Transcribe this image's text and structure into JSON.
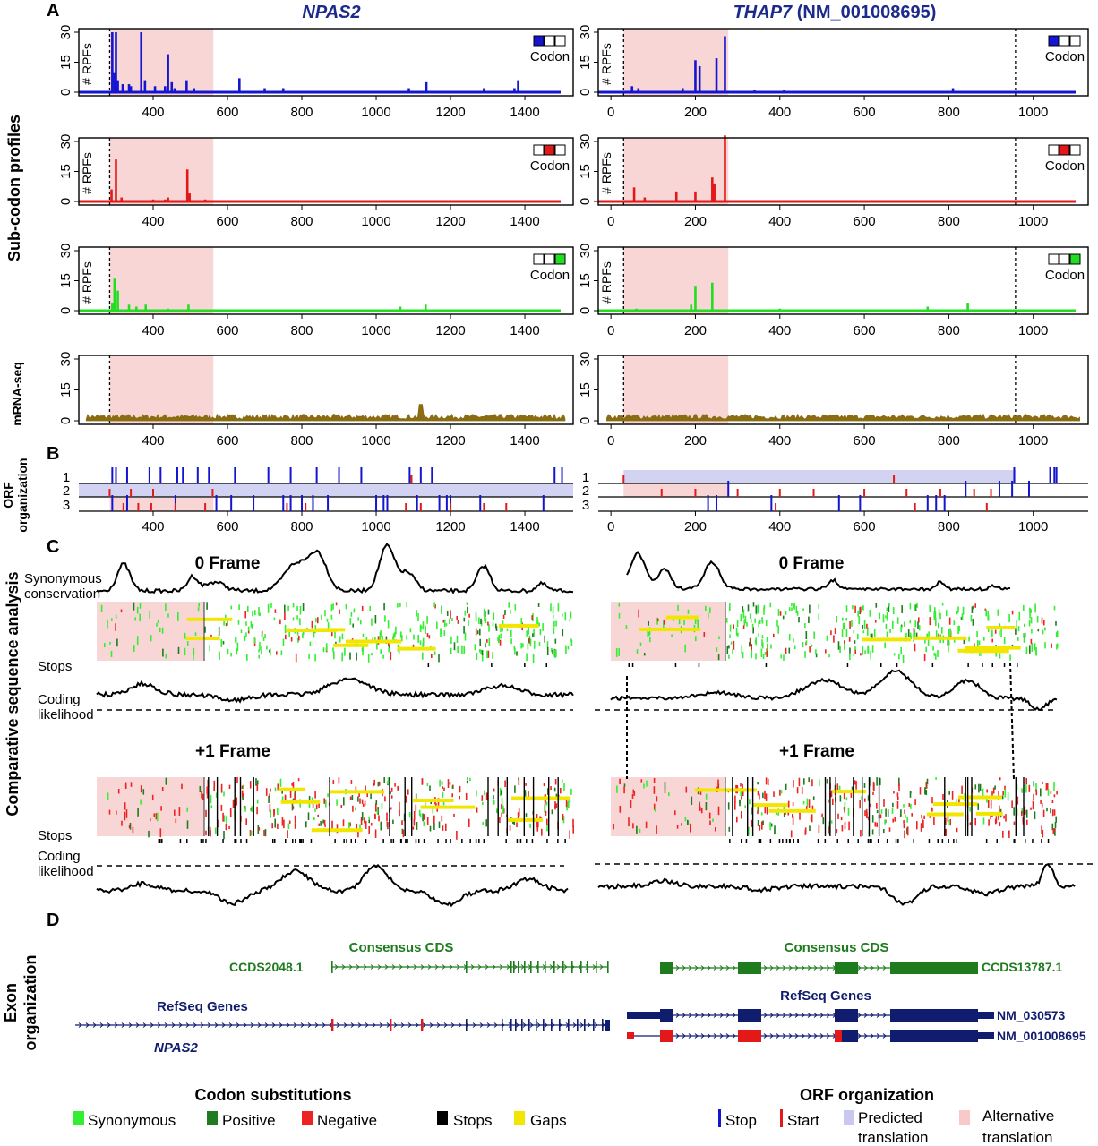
{
  "panels": {
    "A": "A",
    "B": "B",
    "C": "C",
    "D": "D"
  },
  "genes": {
    "left_title": "NPAS2",
    "right_title_italic": "THAP7",
    "right_title_suffix": " (NM_001008695)"
  },
  "section_labels": {
    "subcodon": "Sub-codon profiles",
    "mrna": "mRNA-seq",
    "orf_line1": "ORF",
    "orf_line2": "organization",
    "comparative": "Comparative sequence analysis",
    "exon_line1": "Exon",
    "exon_line2": "organization"
  },
  "profile_labels": {
    "ylabel": "# RPFs",
    "codon": "Codon"
  },
  "y_ticks": [
    "0",
    "15",
    "30"
  ],
  "orf_frames": [
    "1",
    "2",
    "3"
  ],
  "axes": {
    "left_x_ticks": [
      "400",
      "600",
      "800",
      "1000",
      "1200",
      "1400"
    ],
    "right_x_ticks": [
      "0",
      "200",
      "400",
      "600",
      "800",
      "1000"
    ]
  },
  "comparative": {
    "frame0": "0 Frame",
    "frame1": "+1 Frame",
    "synonymous_line1": "Synonymous",
    "synonymous_line2": "conservation",
    "stops": "Stops",
    "coding_line1": "Coding",
    "coding_line2": "likelihood"
  },
  "exon": {
    "consensus": "Consensus CDS",
    "refseq": "RefSeq Genes",
    "left_ccds": "CCDS2048.1",
    "left_gene": "NPAS2",
    "right_ccds": "CCDS13787.1",
    "right_nm1": "NM_030573",
    "right_nm2": "NM_001008695"
  },
  "legend": {
    "codon_title": "Codon substitutions",
    "synonymous": "Synonymous",
    "positive": "Positive",
    "negative": "Negative",
    "stops": "Stops",
    "gaps": "Gaps",
    "orf_title": "ORF organization",
    "stop": "Stop",
    "start": "Start",
    "predicted_line1": "Predicted",
    "predicted_line2": "translation",
    "alternative_line1": "Alternative",
    "alternative_line2": "translation"
  },
  "colors": {
    "frame1": "#1414d2",
    "frame2": "#e31818",
    "frame3": "#22dd22",
    "mrna": "#8a6d12",
    "highlight_pink": "#f9d6d6",
    "highlight_blue": "#d2d2f2",
    "gene_title": "#1c2a8c",
    "consensus_green": "#1e7b1e",
    "refseq_navy": "#101c6e",
    "synonymous": "#33ee33",
    "positive": "#1e7b1e",
    "negative": "#ee2222",
    "stops": "#000000",
    "gaps": "#f2e600"
  }
}
